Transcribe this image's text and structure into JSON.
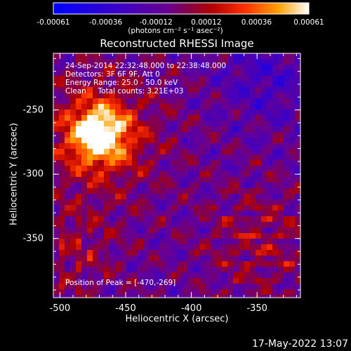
{
  "chart_data": {
    "type": "heatmap",
    "title": "Reconstructed RHESSI Image",
    "xlabel": "Heliocentric X (arcsec)",
    "ylabel": "Heliocentric Y (arcsec)",
    "xlim": [
      -505,
      -317
    ],
    "ylim": [
      -396,
      -206
    ],
    "x_ticks": [
      "-500",
      "-450",
      "-400",
      "-350"
    ],
    "x_tick_values": [
      -500,
      -450,
      -400,
      -350
    ],
    "y_ticks": [
      "-250",
      "-300",
      "-350"
    ],
    "y_tick_values": [
      -250,
      -300,
      -350
    ],
    "colorbar": {
      "range": [
        -0.00061,
        0.00061
      ],
      "ticks": [
        "-0.00061",
        "-0.00036",
        "-0.00012",
        "0.00012",
        "0.00036",
        "0.00061"
      ],
      "units": "(photons cm⁻² s⁻¹ asec⁻²)"
    },
    "annotations": [
      "24-Sep-2014 22:32:48.000 to 22:38:48.000",
      "Detectors: 3F 6F 9F, Att 0",
      "Energy Range: 25.0 - 50.0 keV",
      "Clean     Total counts: 3.21E+03"
    ],
    "peak_label": "Position of Peak = [-470,-269]",
    "peak": [
      -470,
      -269
    ],
    "colors": {
      "background": "#000000",
      "colorbar_start": "#0000ff",
      "colorbar_end": "#ffffff"
    }
  },
  "datestamp": "17-May-2022 13:07"
}
